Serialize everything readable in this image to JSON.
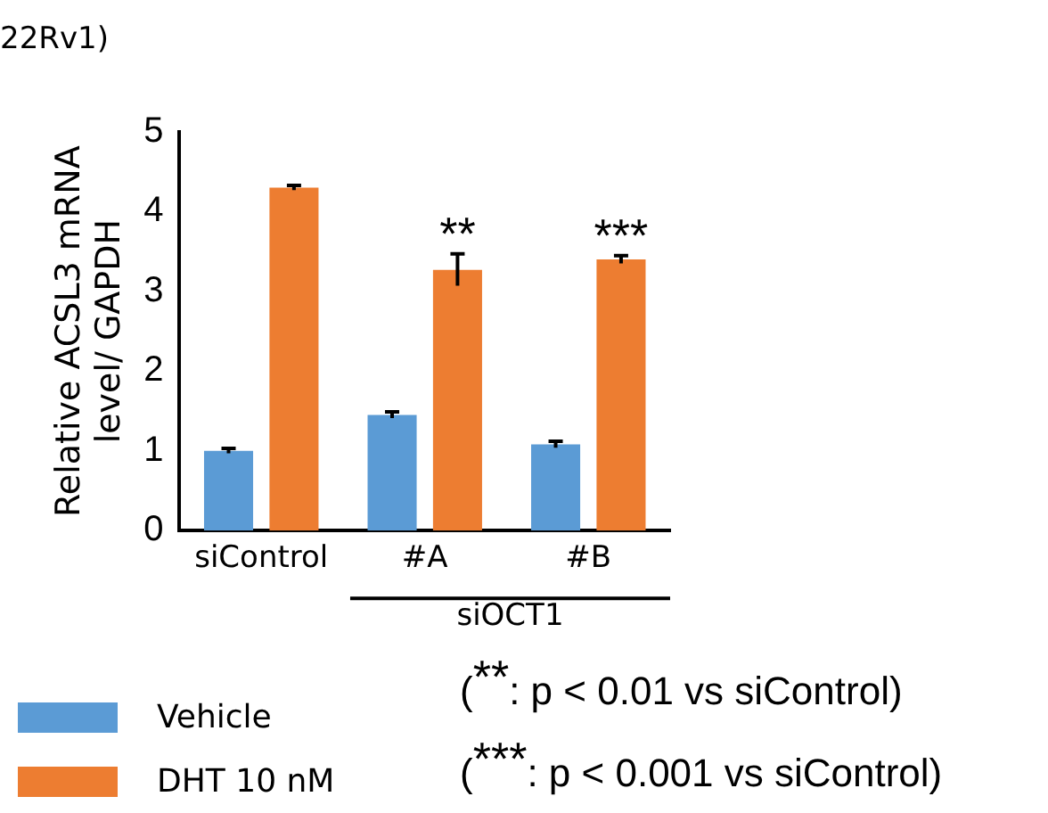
{
  "chart_data": {
    "type": "bar",
    "title": "22Rv1)",
    "ylabel": "Relative ACSL3 mRNA level/ GAPDH",
    "categories": [
      "siControl",
      "#A",
      "#B"
    ],
    "series": [
      {
        "name": "Vehicle",
        "color": "#5b9bd5",
        "values": [
          1.0,
          1.45,
          1.08
        ],
        "errors": [
          0.03,
          0.04,
          0.04
        ]
      },
      {
        "name": "DHT 10 nM",
        "color": "#ed7d31",
        "values": [
          4.3,
          3.27,
          3.4
        ],
        "errors": [
          0.03,
          0.2,
          0.05
        ]
      }
    ],
    "ylim": [
      0,
      5
    ],
    "yticks": [
      0,
      1,
      2,
      3,
      4,
      5
    ],
    "grid": false,
    "legend": "bottom left",
    "annotations": [
      "**",
      "***",
      "siOCT1",
      "($^{**}$: p < 0.01 vs siControl)",
      "($^{***}$: p < 0.001 vs siControl)"
    ]
  }
}
